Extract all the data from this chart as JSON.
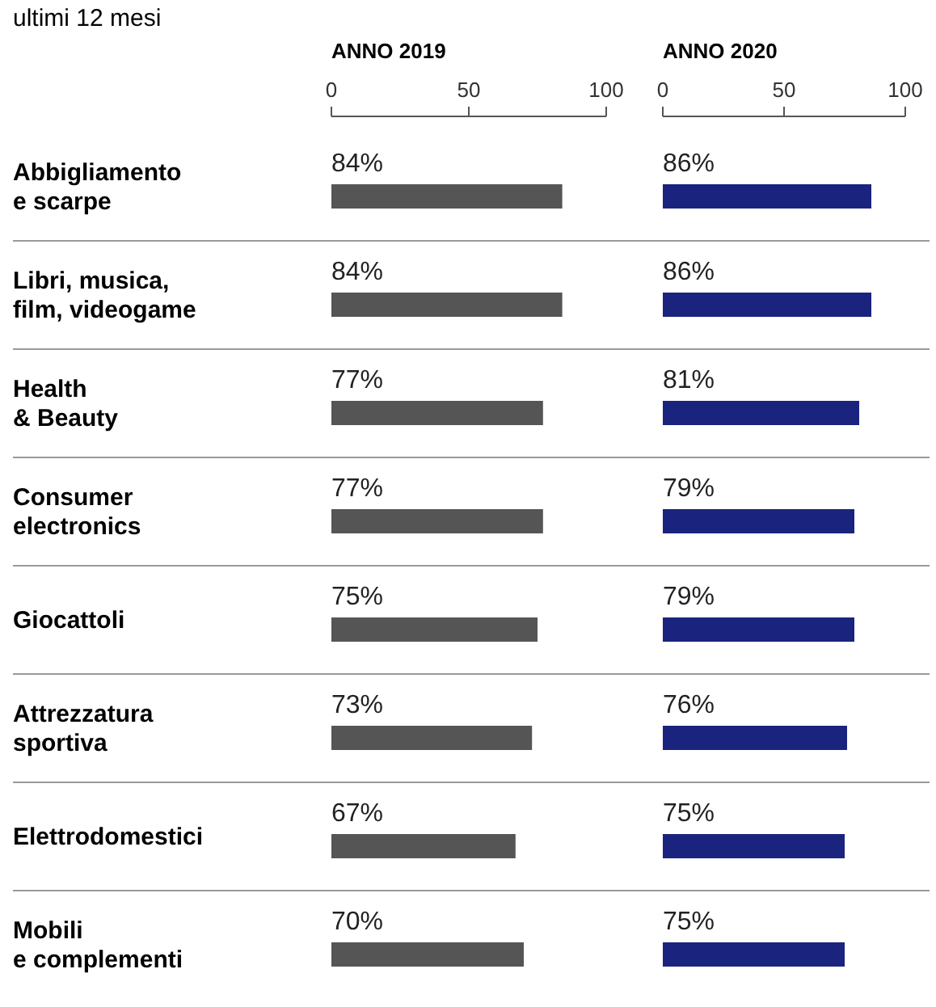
{
  "chart_data": [
    {
      "type": "bar",
      "orientation": "horizontal",
      "subtitle": "ultimi 12 mesi",
      "title": "ANNO 2019",
      "categories": [
        "Abbigliamento\ne scarpe",
        "Libri, musica,\nfilm, videogame",
        "Health\n& Beauty",
        "Consumer\nelectronics",
        "Giocattoli",
        "Attrezzatura\nsportiva",
        "Elettrodomestici",
        "Mobili\ne complementi"
      ],
      "values": [
        84,
        84,
        77,
        77,
        75,
        73,
        67,
        70
      ],
      "value_labels": [
        "84%",
        "84%",
        "77%",
        "77%",
        "75%",
        "73%",
        "67%",
        "70%"
      ],
      "color": "#555555",
      "xlim": [
        0,
        100
      ],
      "xticks": [
        0,
        50,
        100
      ]
    },
    {
      "type": "bar",
      "orientation": "horizontal",
      "title": "ANNO 2020",
      "categories": [
        null,
        null,
        null,
        null,
        null,
        null,
        null,
        null
      ],
      "values": [
        86,
        86,
        81,
        79,
        79,
        76,
        75,
        75
      ],
      "value_labels": [
        "86%",
        "86%",
        "81%",
        "79%",
        "79%",
        "76%",
        "75%",
        "75%"
      ],
      "color": "#1a237e",
      "xlim": [
        0,
        100
      ],
      "xticks": [
        0,
        50,
        100
      ]
    }
  ]
}
